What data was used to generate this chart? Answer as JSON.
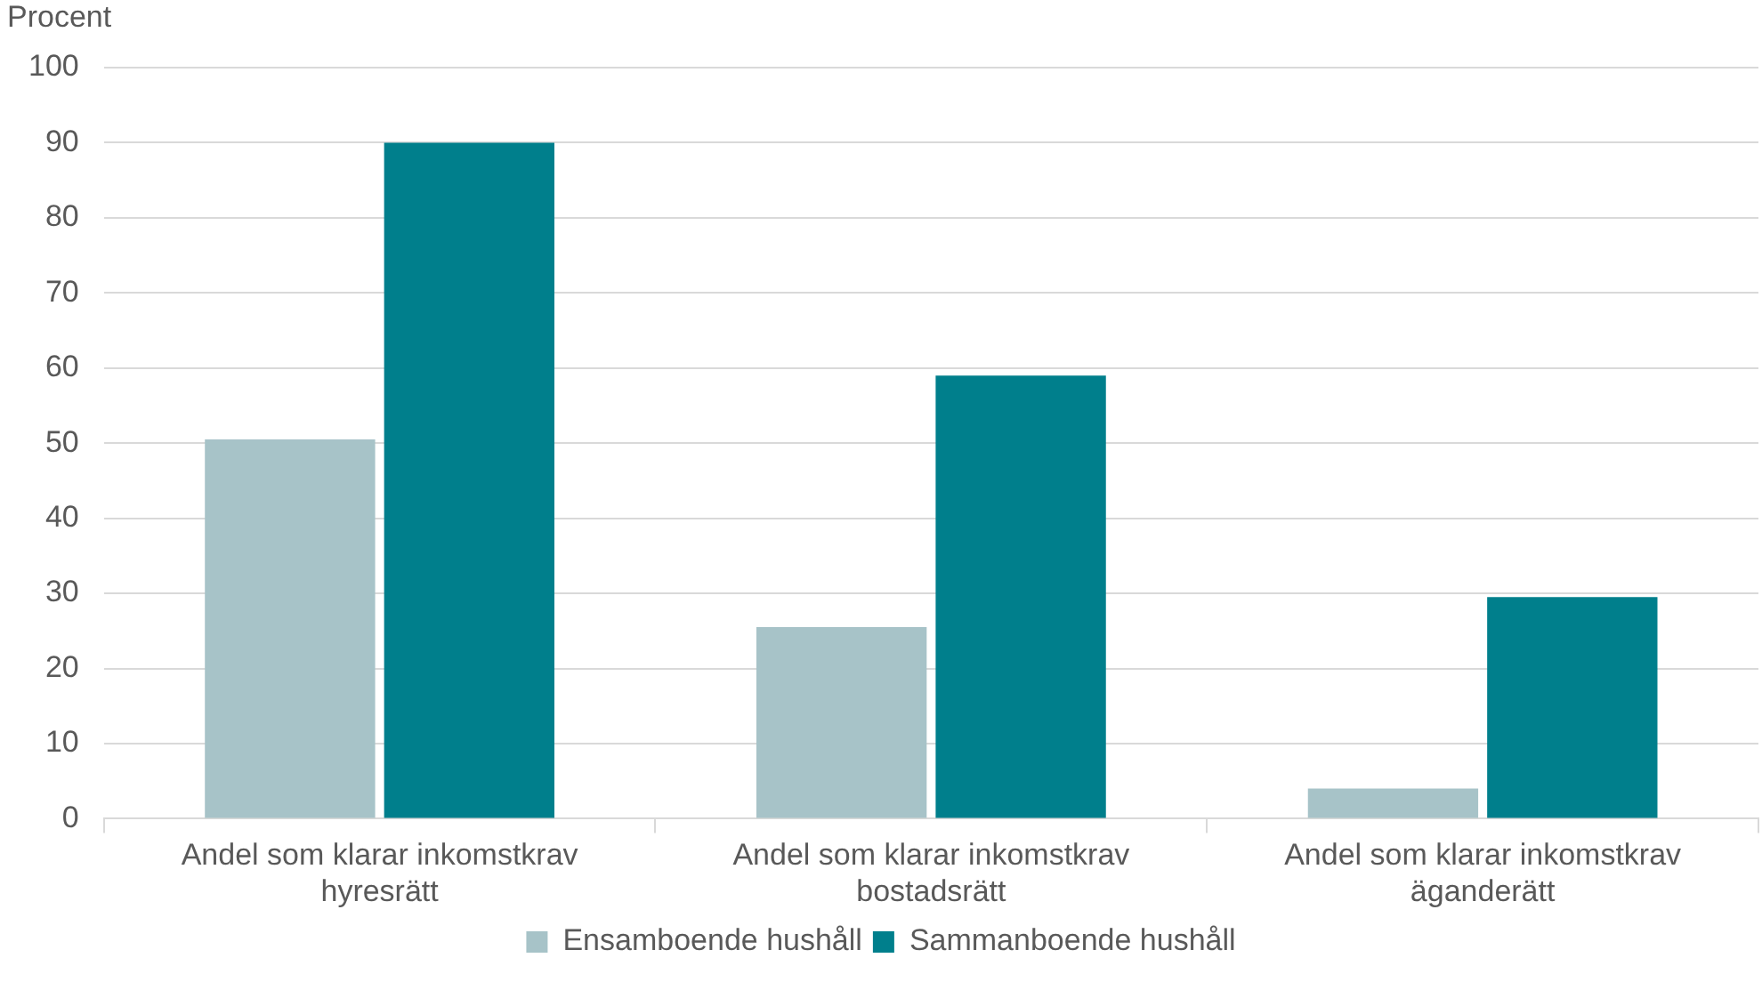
{
  "chart_data": {
    "type": "bar",
    "ylabel": "Procent",
    "categories": [
      "Andel som klarar inkomstkrav hyresrätt",
      "Andel som klarar inkomstkrav bostadsrätt",
      "Andel som klarar inkomstkrav äganderätt"
    ],
    "series": [
      {
        "name": "Ensamboende hushåll",
        "color": "#a7c3c8",
        "values": [
          50.5,
          25.5,
          4
        ]
      },
      {
        "name": "Sammanboende hushåll",
        "color": "#007f8c",
        "values": [
          90,
          59,
          29.5
        ]
      }
    ],
    "ylim": [
      0,
      100
    ],
    "yticks": [
      0,
      10,
      20,
      30,
      40,
      50,
      60,
      70,
      80,
      90,
      100
    ],
    "grid": "y",
    "legend": "bottom"
  }
}
